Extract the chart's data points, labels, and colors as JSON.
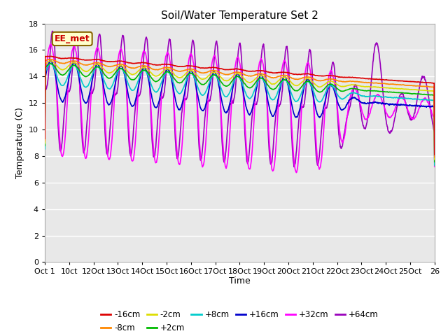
{
  "title": "Soil/Water Temperature Set 2",
  "xlabel": "Time",
  "ylabel": "Temperature (C)",
  "ylim": [
    0,
    18
  ],
  "yticks": [
    0,
    2,
    4,
    6,
    8,
    10,
    12,
    14,
    16,
    18
  ],
  "bg_color": "#ffffff",
  "plot_bg": "#e8e8e8",
  "annotation": "EE_met",
  "ann_fc": "#ffffcc",
  "ann_ec": "#886600",
  "ann_tc": "#cc0000",
  "colors": {
    "-16cm": "#dd0000",
    "-8cm": "#ff8800",
    "-2cm": "#dddd00",
    "+2cm": "#00bb00",
    "+8cm": "#00cccc",
    "+16cm": "#0000cc",
    "+32cm": "#ff00ff",
    "+64cm": "#9900bb"
  },
  "xtick_labels": [
    "Oct 1",
    "10ct",
    "12Oct",
    "13Oct",
    "14Oct",
    "15Oct",
    "16Oct",
    "17Oct",
    "18Oct",
    "19Oct",
    "20Oct",
    "21Oct",
    "22Oct",
    "23Oct",
    "24Oct",
    "25Oct",
    "26"
  ],
  "n_days": 25
}
